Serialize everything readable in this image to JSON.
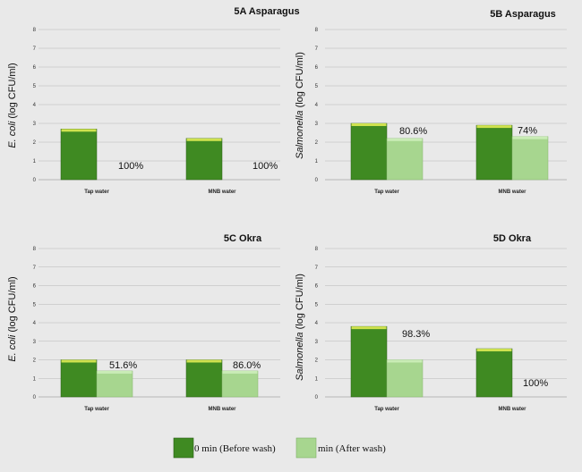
{
  "legend": {
    "before_label": "0 min (Before wash)",
    "after_label": "min (After wash)"
  },
  "colors": {
    "before_fill": "#3f8a22",
    "before_top": "#cfe24f",
    "after_fill": "#a7d68f",
    "after_top": "#c9ecb6",
    "gridline": "#b8b8b8",
    "background": "#e9e9e9"
  },
  "chart_data": [
    {
      "type": "bar",
      "title": "5A Asparagus",
      "ylabel_italic": "E. coli",
      "ylabel_rest": " (log CFU/ml)",
      "ylim": [
        0,
        8
      ],
      "yticks": [
        "0",
        "1",
        "2",
        "3",
        "4",
        "5",
        "6",
        "7",
        "8"
      ],
      "grid": true,
      "categories": [
        "Tap water",
        "MNB water"
      ],
      "series": [
        {
          "name": "0 min (Before wash)",
          "values": [
            2.7,
            2.2
          ]
        },
        {
          "name": "min (After wash)",
          "values": [
            0,
            0
          ]
        }
      ],
      "annotations": [
        "100%",
        "100%"
      ]
    },
    {
      "type": "bar",
      "title": "5B Asparagus",
      "ylabel_italic": "Salmonella",
      "ylabel_rest": " (log CFU/ml)",
      "ylim": [
        0,
        8
      ],
      "yticks": [
        "0",
        "1",
        "2",
        "3",
        "4",
        "5",
        "6",
        "7",
        "8"
      ],
      "grid": true,
      "categories": [
        "Tap water",
        "MNB water"
      ],
      "series": [
        {
          "name": "0 min (Before wash)",
          "values": [
            3.0,
            2.9
          ]
        },
        {
          "name": "min (After wash)",
          "values": [
            2.2,
            2.3
          ]
        }
      ],
      "annotations": [
        "80.6%",
        "74%"
      ]
    },
    {
      "type": "bar",
      "title": "5C Okra",
      "ylabel_italic": "E. coli",
      "ylabel_rest": " (log CFU/ml)",
      "ylim": [
        0,
        8
      ],
      "yticks": [
        "0",
        "1",
        "2",
        "3",
        "4",
        "5",
        "6",
        "7",
        "8"
      ],
      "grid": true,
      "categories": [
        "Tap water",
        "MNB water"
      ],
      "series": [
        {
          "name": "0 min (Before wash)",
          "values": [
            2.0,
            2.0
          ]
        },
        {
          "name": "min (After wash)",
          "values": [
            1.4,
            1.4
          ]
        }
      ],
      "annotations": [
        "51.6%",
        "86.0%"
      ]
    },
    {
      "type": "bar",
      "title": "5D Okra",
      "ylabel_italic": "Salmonella",
      "ylabel_rest": " (log CFU/ml)",
      "ylim": [
        0,
        8
      ],
      "yticks": [
        "0",
        "1",
        "2",
        "3",
        "4",
        "5",
        "6",
        "7",
        "8"
      ],
      "grid": true,
      "categories": [
        "Tap water",
        "MNB water"
      ],
      "series": [
        {
          "name": "0 min (Before wash)",
          "values": [
            3.8,
            2.6
          ]
        },
        {
          "name": "min (After wash)",
          "values": [
            2.0,
            0
          ]
        }
      ],
      "annotations": [
        "98.3%",
        "100%"
      ]
    }
  ]
}
